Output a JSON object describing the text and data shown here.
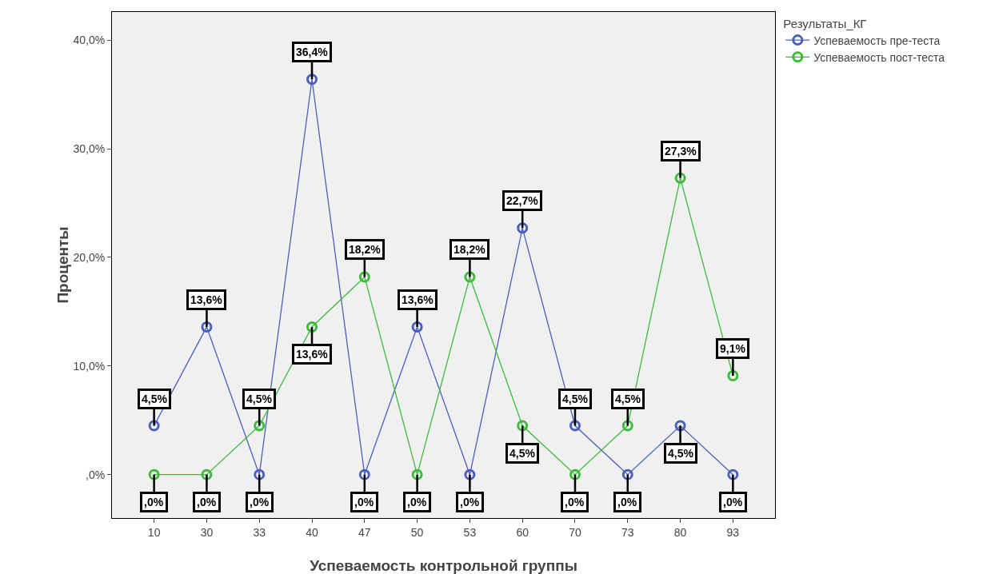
{
  "chart_data": {
    "type": "line",
    "xlabel": "Успеваемость контрольной группы",
    "ylabel": "Проценты",
    "legend_title": "Результаты_КГ",
    "legend": "right",
    "grid": false,
    "marker": "circle",
    "line_style": "solid",
    "categories": [
      "10",
      "30",
      "33",
      "40",
      "47",
      "50",
      "53",
      "60",
      "70",
      "73",
      "80",
      "93"
    ],
    "series": [
      {
        "name": "Успеваемость пре-теста",
        "color": "#4b5fbf",
        "values": [
          4.5,
          13.6,
          0,
          36.4,
          0,
          13.6,
          0,
          22.7,
          4.5,
          0,
          4.5,
          0
        ],
        "value_labels": [
          "4,5%",
          "13,6%",
          ",0%",
          "36,4%",
          ",0%",
          "13,6%",
          ",0%",
          "22,7%",
          "4,5%",
          ",0%",
          "4,5%",
          ",0%"
        ]
      },
      {
        "name": "Успеваемость пост-теста",
        "color": "#3dbb3d",
        "values": [
          0,
          0,
          4.5,
          13.6,
          18.2,
          0,
          18.2,
          4.5,
          0,
          4.5,
          27.3,
          9.1
        ],
        "value_labels": [
          ",0%",
          ",0%",
          "4,5%",
          "13,6%",
          "18,2%",
          ",0%",
          "18,2%",
          "4,5%",
          ",0%",
          "4,5%",
          "27,3%",
          "9,1%"
        ]
      }
    ],
    "ylim": [
      -4,
      42.6
    ],
    "yticks": [
      {
        "value": 0,
        "label": ",0%"
      },
      {
        "value": 10,
        "label": "10,0%"
      },
      {
        "value": 20,
        "label": "20,0%"
      },
      {
        "value": 30,
        "label": "30,0%"
      },
      {
        "value": 40,
        "label": "40,0%"
      }
    ]
  }
}
